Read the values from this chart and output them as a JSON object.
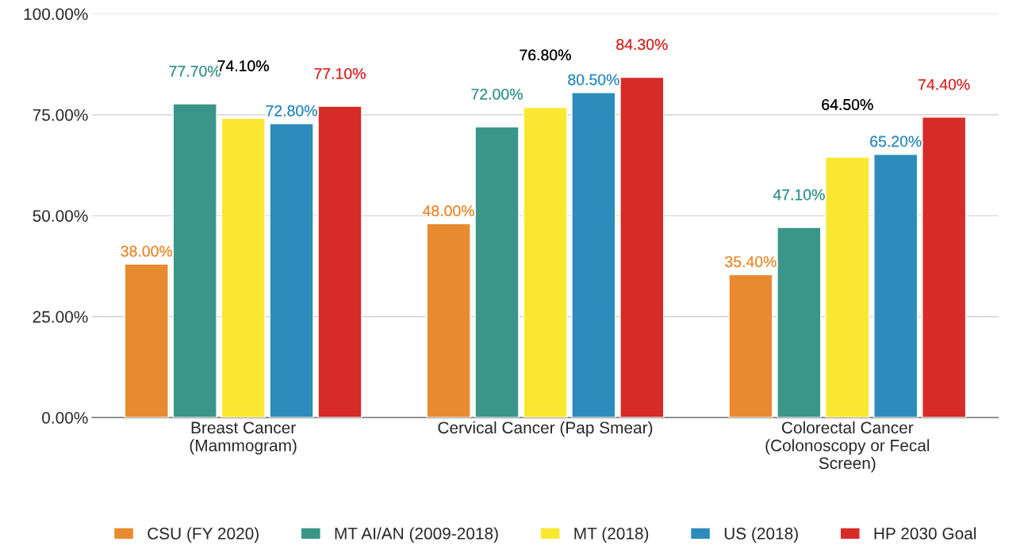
{
  "chart_data": {
    "type": "bar",
    "categories": [
      "Breast Cancer\n(Mammogram)",
      "Cervical Cancer (Pap Smear)",
      "Colorectal Cancer\n(Colonoscopy or Fecal\nScreen)"
    ],
    "series": [
      {
        "name": "CSU (FY 2020)",
        "color": "#e98a30",
        "values": [
          38.0,
          48.0,
          35.4
        ],
        "value_labels": [
          "38.00%",
          "48.00%",
          "35.40%"
        ]
      },
      {
        "name": "MT AI/AN (2009-2018)",
        "color": "#3a9688",
        "values": [
          77.7,
          72.0,
          47.1
        ],
        "value_labels": [
          "77.70%",
          "72.00%",
          "47.10%"
        ]
      },
      {
        "name": "MT (2018)",
        "color": "#fbe731",
        "values": [
          74.1,
          76.8,
          64.5
        ],
        "value_labels": [
          "74.10%",
          "76.80%",
          "64.50%"
        ]
      },
      {
        "name": "US (2018)",
        "color": "#2e8cbd",
        "values": [
          72.8,
          80.5,
          65.2
        ],
        "value_labels": [
          "72.80%",
          "80.50%",
          "65.20%"
        ]
      },
      {
        "name": "HP 2030 Goal",
        "color": "#d62b27",
        "values": [
          77.1,
          84.3,
          74.4
        ],
        "value_labels": [
          "77.10%",
          "84.30%",
          "74.40%"
        ]
      }
    ],
    "ylim": [
      0,
      100
    ],
    "yticks": [
      {
        "value": 0,
        "label": "0.00%"
      },
      {
        "value": 25,
        "label": "25.00%"
      },
      {
        "value": 50,
        "label": "50.00%"
      },
      {
        "value": 75,
        "label": "75.00%"
      },
      {
        "value": 100,
        "label": "100.00%"
      }
    ],
    "grid": "y",
    "legend": "bottom"
  }
}
